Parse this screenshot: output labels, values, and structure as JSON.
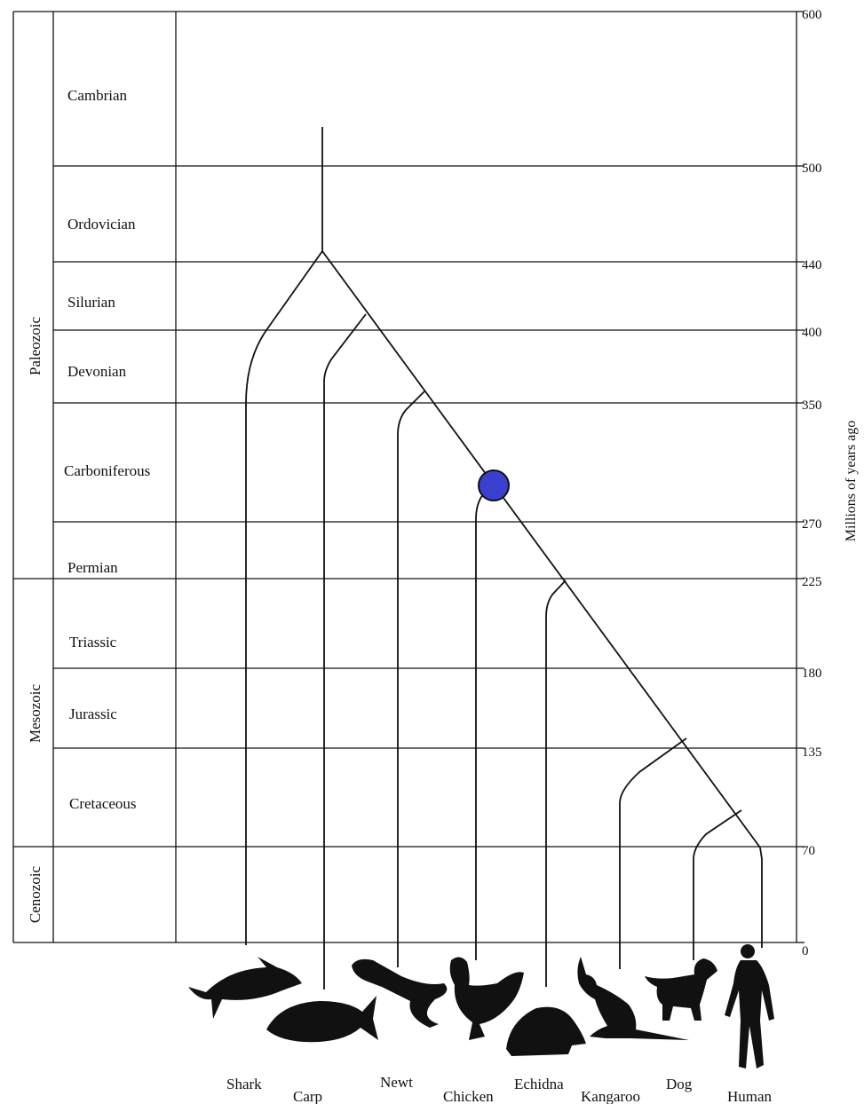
{
  "eras": [
    {
      "name": "Paleozoic"
    },
    {
      "name": "Mesozoic"
    },
    {
      "name": "Cenozoic"
    }
  ],
  "periods": [
    {
      "name": "Cambrian"
    },
    {
      "name": "Ordovician"
    },
    {
      "name": "Silurian"
    },
    {
      "name": "Devonian"
    },
    {
      "name": "Carboniferous"
    },
    {
      "name": "Permian"
    },
    {
      "name": "Triassic"
    },
    {
      "name": "Jurassic"
    },
    {
      "name": "Cretaceous"
    }
  ],
  "ticks": [
    "600",
    "500",
    "440",
    "400",
    "350",
    "270",
    "225",
    "180",
    "135",
    "70",
    "0"
  ],
  "axis_title": "Millions of years ago",
  "animals": [
    "Shark",
    "Carp",
    "Newt",
    "Chicken",
    "Echidna",
    "Kangaroo",
    "Dog",
    "Human"
  ],
  "highlight_color": "#3a3fd0",
  "highlight_marker": "circle on branch leading to Chicken"
}
